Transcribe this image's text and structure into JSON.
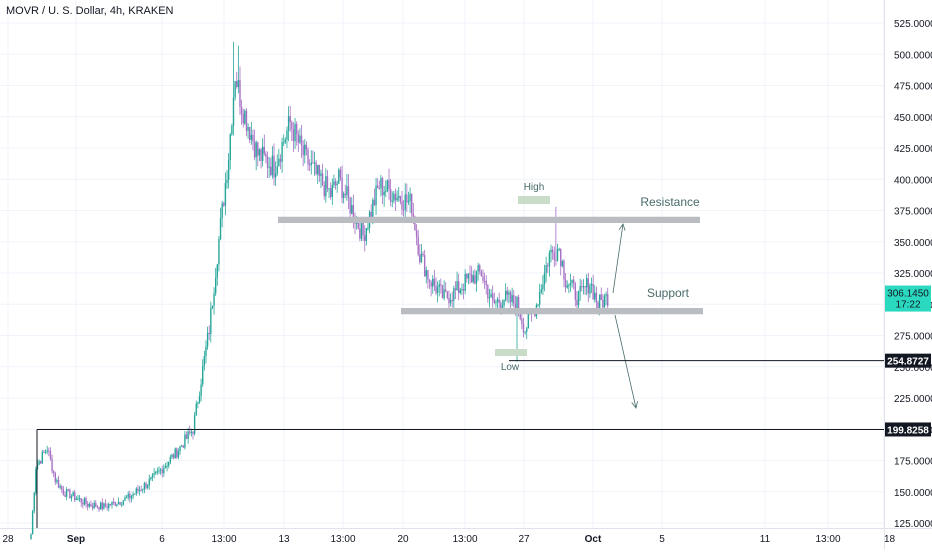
{
  "header": {
    "title": "MOVR / U. S. Dollar, 4h, KRAKEN"
  },
  "colors": {
    "up": "#26a69a",
    "down": "#a66fc4",
    "grid": "#f0f3fa",
    "axis_text": "#131722",
    "zone": "#b9bdc2",
    "zone_green": "#c8dcc8",
    "annotation": "#4a6b6b",
    "last_price_bg": "#2bd9c0",
    "level_bg": "#131722",
    "level_text": "#ffffff"
  },
  "chart_data": {
    "type": "candlestick",
    "title": "MOVR / U. S. Dollar, 4h, KRAKEN",
    "xlabel": "",
    "ylabel": "",
    "ylim": [
      108,
      535
    ],
    "y_ticks": [
      "125.0000",
      "150.0000",
      "175.0000",
      "200.0000",
      "225.0000",
      "250.0000",
      "275.0000",
      "300.0000",
      "325.0000",
      "350.0000",
      "375.0000",
      "400.0000",
      "425.0000",
      "450.0000",
      "475.0000",
      "500.0000",
      "525.0000"
    ],
    "x_ticks": [
      "28",
      "Sep",
      "6",
      "13:00",
      "13",
      "13:00",
      "20",
      "13:00",
      "27",
      "Oct",
      "5",
      "11",
      "13:00",
      "18"
    ],
    "grid": true,
    "last_price": {
      "value": "306.1450",
      "countdown": "17:22"
    },
    "horizontal_levels": [
      "254.8727",
      "199.8258"
    ],
    "annotations": {
      "high": "High",
      "low": "Low",
      "resistance": "Resistance",
      "support": "Support"
    },
    "zones": {
      "resistance": [
        365,
        370
      ],
      "support": [
        292,
        297
      ]
    },
    "swing_high": 378,
    "swing_low": 254,
    "candles_per_day": 6,
    "keypoints": [
      [
        0,
        116
      ],
      [
        3,
        170
      ],
      [
        10,
        185
      ],
      [
        15,
        160
      ],
      [
        20,
        150
      ],
      [
        28,
        145
      ],
      [
        35,
        140
      ],
      [
        45,
        138
      ],
      [
        60,
        145
      ],
      [
        75,
        160
      ],
      [
        90,
        182
      ],
      [
        100,
        200
      ],
      [
        110,
        280
      ],
      [
        115,
        340
      ],
      [
        122,
        420
      ],
      [
        126,
        485
      ],
      [
        130,
        460
      ],
      [
        140,
        420
      ],
      [
        150,
        410
      ],
      [
        160,
        445
      ],
      [
        168,
        420
      ],
      [
        175,
        405
      ],
      [
        185,
        388
      ],
      [
        190,
        400
      ],
      [
        200,
        370
      ],
      [
        205,
        355
      ],
      [
        215,
        395
      ],
      [
        225,
        388
      ],
      [
        235,
        380
      ],
      [
        240,
        340
      ],
      [
        246,
        320
      ],
      [
        255,
        305
      ],
      [
        262,
        310
      ],
      [
        270,
        320
      ],
      [
        278,
        325
      ],
      [
        285,
        300
      ],
      [
        292,
        305
      ],
      [
        300,
        300
      ],
      [
        305,
        280
      ],
      [
        312,
        300
      ],
      [
        320,
        340
      ],
      [
        326,
        345
      ],
      [
        330,
        320
      ],
      [
        338,
        305
      ],
      [
        345,
        318
      ],
      [
        350,
        300
      ],
      [
        356,
        306
      ]
    ]
  }
}
